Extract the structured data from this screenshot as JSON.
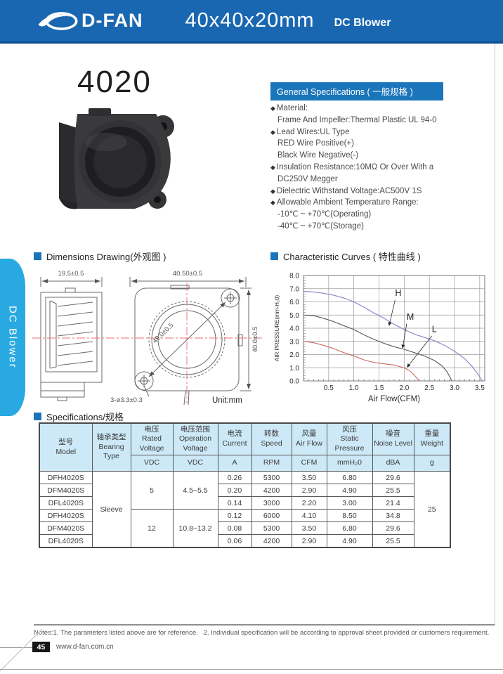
{
  "header": {
    "brand": "D-FAN",
    "size": "40x40x20mm",
    "product_type": "DC Blower"
  },
  "side_tab": {
    "label": "DC Blower"
  },
  "product": {
    "model": "4020",
    "photo_alt": "black DC blower fan"
  },
  "colors": {
    "header_blue": "#1a67b1",
    "section_blue": "#1b75bb",
    "tab_blue": "#29a9e1",
    "table_header_bg": "#cde8f6",
    "centerline_red": "#e87070"
  },
  "general_specs": {
    "title": "General Specifications ( 一般规格 )",
    "bullet_char": "◆",
    "items": [
      {
        "bullet": true,
        "text": "Material:"
      },
      {
        "bullet": false,
        "text": "Frame And Impeller:Thermal Plastic UL 94-0"
      },
      {
        "bullet": true,
        "text": "Lead Wires:UL Type"
      },
      {
        "bullet": false,
        "text": "RED Wire Positive(+)"
      },
      {
        "bullet": false,
        "text": "Black Wire Negative(-)"
      },
      {
        "bullet": true,
        "text": "Insulation Resistance:10MΩ Or Over With a"
      },
      {
        "bullet": false,
        "text": "DC250V Megger"
      },
      {
        "bullet": true,
        "text": "Dielectric Withstand Voltage:AC500V 1S"
      },
      {
        "bullet": true,
        "text": "Allowable Ambient Temperature Range:"
      },
      {
        "bullet": false,
        "text": "-10℃ ~ +70℃(Operating)"
      },
      {
        "bullet": false,
        "text": "-40℃ ~ +70℃(Storage)"
      }
    ]
  },
  "dimensions": {
    "title": "Dimensions Drawing(外观图 )",
    "side_width": "19.5±0.5",
    "top_width": "40.50±0.5",
    "diagonal": "49.0±0.5",
    "height": "40.0±0.5",
    "holes": "3-ø3.3±0.3",
    "unit": "Unit:mm"
  },
  "curves_section": {
    "title": "Characteristic Curves ( 特性曲线 )"
  },
  "chart_data": {
    "type": "line",
    "title": "Characteristic Curves ( 特性曲线 )",
    "xlabel": "Air Flow(CFM)",
    "ylabel": "AIR PRESSURE(mm-H₂0)",
    "xlim": [
      0,
      3.6
    ],
    "ylim": [
      0,
      8.0
    ],
    "xticks": [
      0.5,
      1.0,
      1.5,
      2.0,
      2.5,
      3.0,
      3.5
    ],
    "yticks": [
      0.0,
      1.0,
      2.0,
      3.0,
      4.0,
      5.0,
      6.0,
      7.0,
      8.0
    ],
    "grid": true,
    "legend_position": "inline-labels",
    "series": [
      {
        "name": "H",
        "color": "#8585cb",
        "points": [
          [
            0,
            6.8
          ],
          [
            0.2,
            6.75
          ],
          [
            0.4,
            6.65
          ],
          [
            0.6,
            6.5
          ],
          [
            0.8,
            6.3
          ],
          [
            1.0,
            6.0
          ],
          [
            1.2,
            5.6
          ],
          [
            1.4,
            5.15
          ],
          [
            1.6,
            4.75
          ],
          [
            1.8,
            4.3
          ],
          [
            2.0,
            3.9
          ],
          [
            2.2,
            3.55
          ],
          [
            2.4,
            3.3
          ],
          [
            2.6,
            3.05
          ],
          [
            2.8,
            2.7
          ],
          [
            3.0,
            2.25
          ],
          [
            3.2,
            1.7
          ],
          [
            3.35,
            1.1
          ],
          [
            3.45,
            0.6
          ],
          [
            3.55,
            0
          ]
        ]
      },
      {
        "name": "M",
        "color": "#5a5a5a",
        "points": [
          [
            0,
            5.0
          ],
          [
            0.2,
            4.95
          ],
          [
            0.4,
            4.75
          ],
          [
            0.6,
            4.5
          ],
          [
            0.8,
            4.2
          ],
          [
            1.0,
            3.9
          ],
          [
            1.2,
            3.5
          ],
          [
            1.4,
            3.15
          ],
          [
            1.6,
            2.85
          ],
          [
            1.8,
            2.6
          ],
          [
            2.0,
            2.4
          ],
          [
            2.2,
            2.15
          ],
          [
            2.4,
            1.9
          ],
          [
            2.6,
            1.55
          ],
          [
            2.75,
            1.15
          ],
          [
            2.85,
            0.7
          ],
          [
            2.95,
            0
          ]
        ]
      },
      {
        "name": "L",
        "color": "#cf6a62",
        "points": [
          [
            0,
            3.0
          ],
          [
            0.2,
            2.9
          ],
          [
            0.4,
            2.7
          ],
          [
            0.6,
            2.45
          ],
          [
            0.8,
            2.15
          ],
          [
            1.0,
            1.9
          ],
          [
            1.2,
            1.6
          ],
          [
            1.4,
            1.4
          ],
          [
            1.6,
            1.3
          ],
          [
            1.8,
            1.2
          ],
          [
            2.0,
            1.0
          ],
          [
            2.1,
            0.8
          ],
          [
            2.2,
            0.45
          ],
          [
            2.3,
            0
          ]
        ]
      }
    ],
    "annotations": [
      {
        "label": "H",
        "label_xy": [
          1.82,
          6.45
        ],
        "line_from": [
          1.82,
          6.15
        ],
        "arrow_to": [
          1.7,
          4.2
        ]
      },
      {
        "label": "M",
        "label_xy": [
          2.05,
          4.65
        ],
        "line_from": [
          2.05,
          4.35
        ],
        "arrow_to": [
          1.97,
          2.5
        ]
      },
      {
        "label": "L",
        "label_xy": [
          2.55,
          3.72
        ],
        "line_from": [
          2.55,
          3.42
        ],
        "arrow_to": [
          2.06,
          1.05
        ]
      }
    ]
  },
  "spec_table": {
    "title": "Specifications/规格",
    "columns": [
      {
        "zh": "型号",
        "en": "Model",
        "unit": null
      },
      {
        "zh": "轴承类型",
        "en": "Bearing Type",
        "unit": null
      },
      {
        "zh": "电压",
        "en": "Rated Voltage",
        "unit": "VDC"
      },
      {
        "zh": "电压范围",
        "en": "Operation Voltage",
        "unit": "VDC"
      },
      {
        "zh": "电流",
        "en": "Current",
        "unit": "A"
      },
      {
        "zh": "转数",
        "en": "Speed",
        "unit": "RPM"
      },
      {
        "zh": "风量",
        "en": "Air Flow",
        "unit": "CFM"
      },
      {
        "zh": "风压",
        "en": "Static Pressure",
        "unit": "mmH₂0"
      },
      {
        "zh": "噪音",
        "en": "Noise Level",
        "unit": "dBA"
      },
      {
        "zh": "重量",
        "en": "Weight",
        "unit": "g"
      }
    ],
    "bearing": "Sleeve",
    "weight": "25",
    "voltage_groups": [
      {
        "rated": "5",
        "operation": "4.5~5.5"
      },
      {
        "rated": "12",
        "operation": "10.8~13.2"
      }
    ],
    "rows": [
      {
        "model": "DFH4020S",
        "current": "0.26",
        "speed": "5300",
        "air_flow": "3.50",
        "pressure": "6.80",
        "noise": "29.6"
      },
      {
        "model": "DFM4020S",
        "current": "0.20",
        "speed": "4200",
        "air_flow": "2.90",
        "pressure": "4.90",
        "noise": "25.5"
      },
      {
        "model": "DFL4020S",
        "current": "0.14",
        "speed": "3000",
        "air_flow": "2.20",
        "pressure": "3.00",
        "noise": "21.4"
      },
      {
        "model": "DFH4020S",
        "current": "0.12",
        "speed": "6000",
        "air_flow": "4.10",
        "pressure": "8.50",
        "noise": "34.8"
      },
      {
        "model": "DFM4020S",
        "current": "0.08",
        "speed": "5300",
        "air_flow": "3.50",
        "pressure": "6.80",
        "noise": "29.6"
      },
      {
        "model": "DFL4020S",
        "current": "0.06",
        "speed": "4200",
        "air_flow": "2.90",
        "pressure": "4.90",
        "noise": "25.5"
      }
    ]
  },
  "footer": {
    "notes": "Notes:1. The parameters listed above are for reference.   2. Individual specification will be according to approval sheet provided or customers requirement.",
    "page": "45",
    "website": "www.d-fan.com.cn"
  }
}
